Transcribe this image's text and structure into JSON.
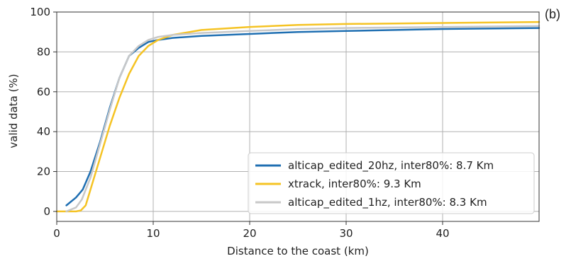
{
  "panel_label": "(b)",
  "chart_data": {
    "type": "line",
    "title": "",
    "xlabel": "Distance to the coast (km)",
    "ylabel": "valid data (%)",
    "xlim": [
      0,
      50
    ],
    "ylim": [
      -5,
      100
    ],
    "x_ticks": [
      0,
      10,
      20,
      30,
      40
    ],
    "y_ticks": [
      0,
      20,
      40,
      60,
      80,
      100
    ],
    "grid": true,
    "legend_position": "lower-right",
    "series": [
      {
        "name": "alticap_edited_20hz, inter80%: 8.7 Km",
        "color": "#1f6fb2",
        "x": [
          1,
          2,
          2.7,
          3.5,
          4.5,
          5.5,
          6.5,
          7.5,
          8.5,
          9.5,
          10.5,
          12,
          15,
          20,
          25,
          30,
          40,
          50
        ],
        "y": [
          3,
          7,
          11,
          20,
          35,
          52,
          67,
          78,
          82,
          85,
          86,
          87,
          88,
          89,
          90,
          90.5,
          91.5,
          92
        ]
      },
      {
        "name": "xtrack, inter80%: 9.3 Km",
        "color": "#f5c324",
        "x": [
          0,
          1,
          2,
          2.5,
          3,
          3.5,
          4.5,
          5.5,
          6.5,
          7.5,
          8.5,
          9.5,
          10.5,
          12,
          15,
          20,
          25,
          30,
          40,
          50
        ],
        "y": [
          0,
          0,
          0,
          0.5,
          3,
          11,
          27,
          43,
          57,
          69,
          78,
          83,
          86,
          88.5,
          91,
          92.5,
          93.5,
          94,
          94.5,
          95
        ]
      },
      {
        "name": "alticap_edited_1hz, inter80%: 8.3 Km",
        "color": "#c8c8c8",
        "x": [
          1,
          2,
          2.6,
          3.5,
          4.5,
          5.5,
          6.5,
          7.5,
          8.5,
          9.5,
          10.5,
          12,
          15,
          20,
          25,
          30,
          40,
          50
        ],
        "y": [
          0,
          2,
          6,
          17,
          34,
          51,
          67,
          78,
          83,
          86,
          87.5,
          88.5,
          89.5,
          90.5,
          91.5,
          92,
          92.5,
          93
        ]
      }
    ]
  }
}
